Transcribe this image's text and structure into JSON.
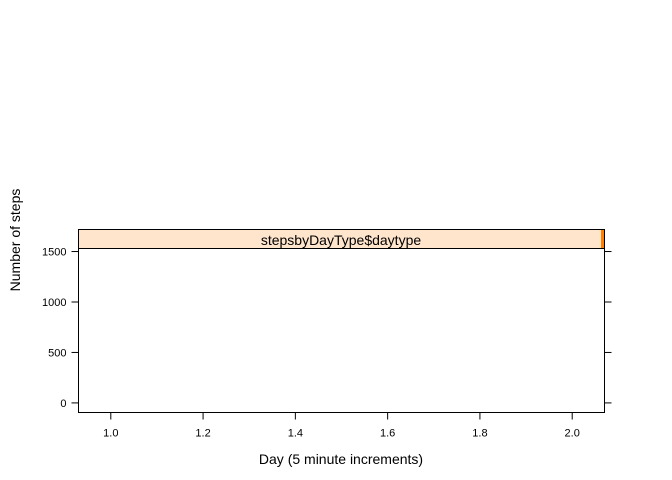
{
  "chart_data": {
    "type": "line",
    "strip_label": "stepsbyDayType$daytype",
    "xlabel": "Day (5 minute increments)",
    "ylabel": "Number of steps",
    "xlim": [
      0.93,
      2.07
    ],
    "ylim": [
      -95,
      1530
    ],
    "x_ticks": [
      1.0,
      1.2,
      1.4,
      1.6,
      1.8,
      2.0
    ],
    "x_tick_labels": [
      "1.0",
      "1.2",
      "1.4",
      "1.6",
      "1.8",
      "2.0"
    ],
    "y_ticks": [
      0,
      500,
      1000,
      1500
    ],
    "y_tick_labels": [
      "0",
      "500",
      "1000",
      "1500"
    ],
    "series": [],
    "strip_color": "#ffe5cc",
    "strip_indicator_color": "#ff7f00",
    "grid": false
  }
}
